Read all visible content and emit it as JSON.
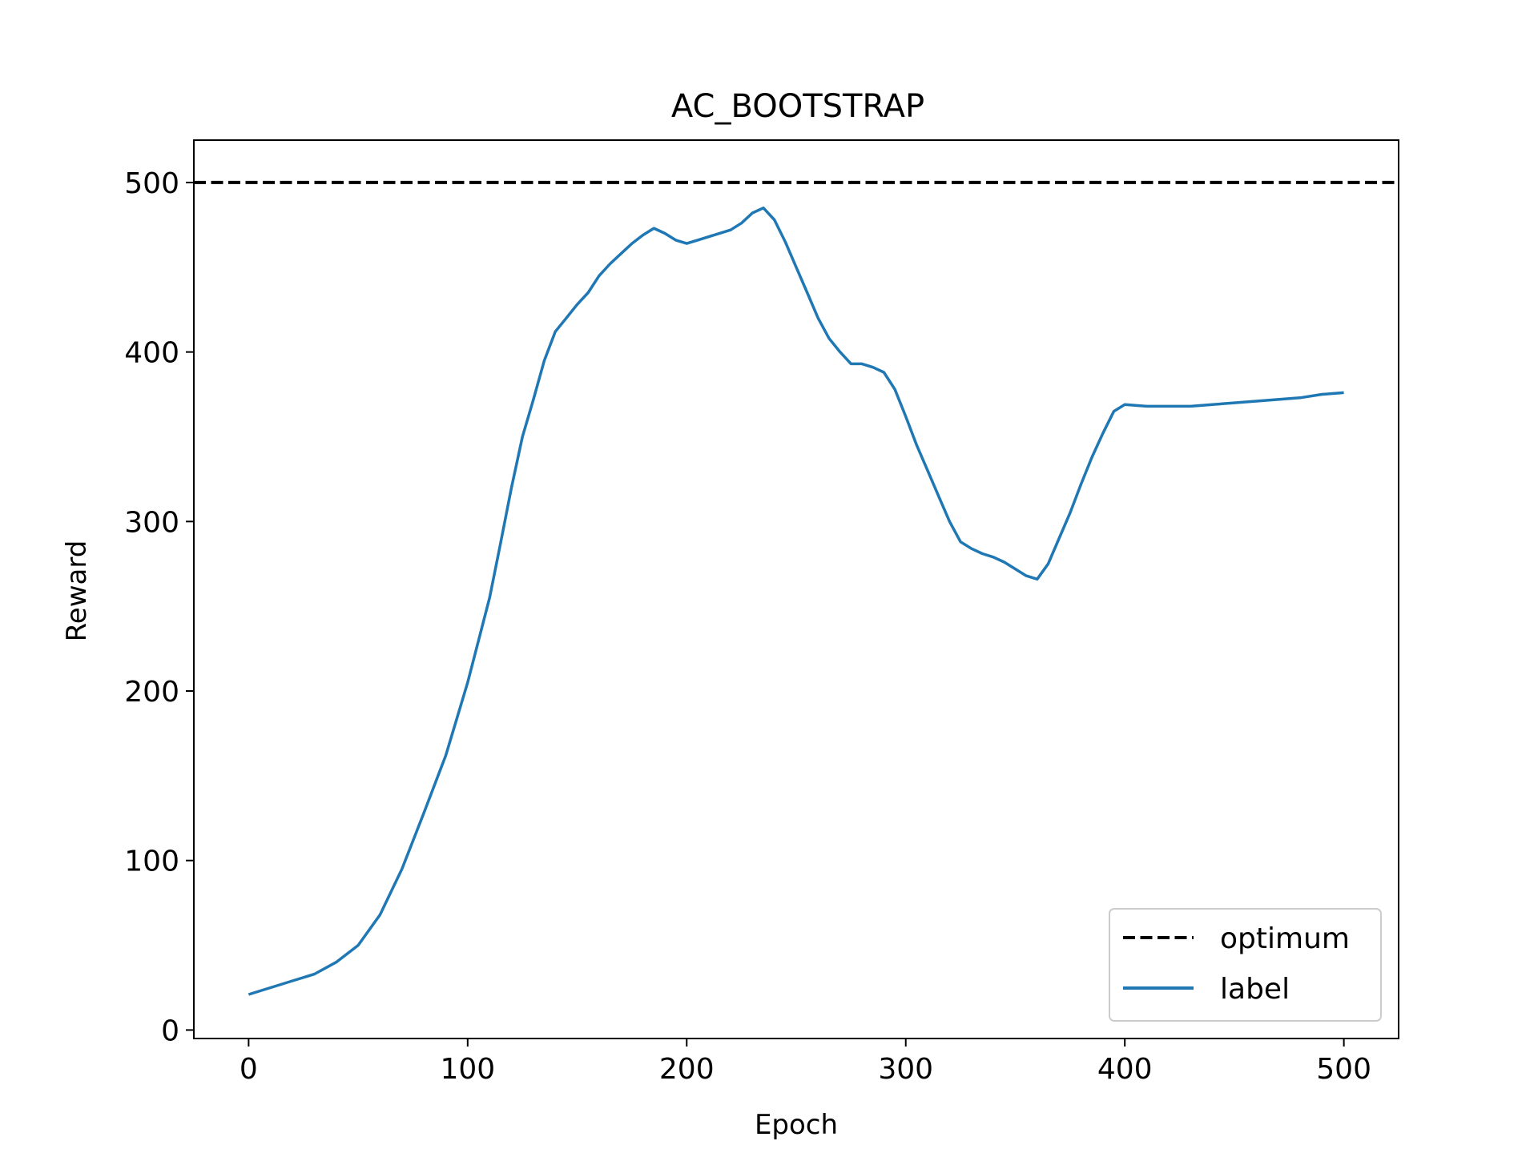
{
  "chart_data": {
    "type": "line",
    "title": "AC_BOOTSTRAP",
    "xlabel": "Epoch",
    "ylabel": "Reward",
    "xlim": [
      -25,
      525
    ],
    "ylim": [
      -5,
      525
    ],
    "xticks": [
      0,
      100,
      200,
      300,
      400,
      500
    ],
    "yticks": [
      0,
      100,
      200,
      300,
      400,
      500
    ],
    "xtick_labels": [
      "0",
      "100",
      "200",
      "300",
      "400",
      "500"
    ],
    "ytick_labels": [
      "0",
      "100",
      "200",
      "300",
      "400",
      "500"
    ],
    "grid": false,
    "legend": {
      "placement": "lower-right",
      "entries": [
        "optimum",
        "label"
      ]
    },
    "series": [
      {
        "name": "optimum",
        "style": "dashed",
        "color": "#000000",
        "x": [
          -25,
          525
        ],
        "y": [
          500,
          500
        ]
      },
      {
        "name": "label",
        "style": "solid",
        "color": "#1f77b4",
        "x": [
          0,
          10,
          20,
          30,
          40,
          50,
          60,
          70,
          80,
          90,
          100,
          110,
          115,
          120,
          125,
          130,
          135,
          140,
          145,
          150,
          155,
          160,
          165,
          170,
          175,
          180,
          185,
          190,
          195,
          200,
          205,
          210,
          215,
          220,
          225,
          230,
          235,
          240,
          245,
          250,
          255,
          260,
          265,
          270,
          275,
          280,
          285,
          290,
          295,
          300,
          305,
          310,
          315,
          320,
          325,
          330,
          335,
          340,
          345,
          350,
          355,
          360,
          365,
          370,
          375,
          380,
          385,
          390,
          395,
          400,
          410,
          420,
          430,
          440,
          450,
          460,
          470,
          480,
          490,
          500
        ],
        "y": [
          21,
          25,
          29,
          33,
          40,
          50,
          68,
          95,
          128,
          162,
          205,
          255,
          287,
          320,
          350,
          372,
          395,
          412,
          420,
          428,
          435,
          445,
          452,
          458,
          464,
          469,
          473,
          470,
          466,
          464,
          466,
          468,
          470,
          472,
          476,
          482,
          485,
          478,
          465,
          450,
          435,
          420,
          408,
          400,
          393,
          393,
          391,
          388,
          378,
          362,
          345,
          330,
          315,
          300,
          288,
          284,
          281,
          279,
          276,
          272,
          268,
          266,
          275,
          290,
          305,
          322,
          338,
          352,
          365,
          369,
          368,
          368,
          368,
          369,
          370,
          371,
          372,
          373,
          375,
          376
        ]
      }
    ]
  }
}
